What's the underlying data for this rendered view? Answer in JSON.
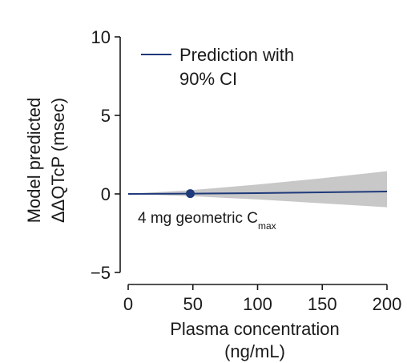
{
  "chart_data": {
    "type": "line",
    "title": "",
    "xlabel_line1": "Plasma concentration",
    "xlabel_line2": "(ng/mL)",
    "ylabel_line1": "Model predicted",
    "ylabel_line2": "ΔΔQTcP (msec)",
    "xlim": [
      0,
      200
    ],
    "ylim": [
      -5,
      10
    ],
    "x_ticks": [
      0,
      50,
      100,
      150,
      200
    ],
    "y_ticks": [
      -5,
      0,
      5,
      10
    ],
    "grid": false,
    "legend": {
      "placement": "top-left",
      "line1": "Prediction with",
      "line2": "90% CI"
    },
    "series": [
      {
        "name": "Prediction with 90% CI",
        "x": [
          0,
          50,
          100,
          150,
          200
        ],
        "y": [
          0.0,
          0.02,
          0.05,
          0.1,
          0.15
        ],
        "ci_lower": [
          0.0,
          -0.15,
          -0.35,
          -0.6,
          -0.85
        ],
        "ci_upper": [
          0.0,
          0.25,
          0.6,
          1.0,
          1.45
        ]
      }
    ],
    "annotations": [
      {
        "x": 48,
        "y": 0.02,
        "marker": "dot",
        "text": "4 mg geometric C",
        "subscript": "max"
      }
    ],
    "colors": {
      "line": "#1f3a7a",
      "band": "#c8c8c8",
      "axis": "#1a1a1a"
    }
  }
}
